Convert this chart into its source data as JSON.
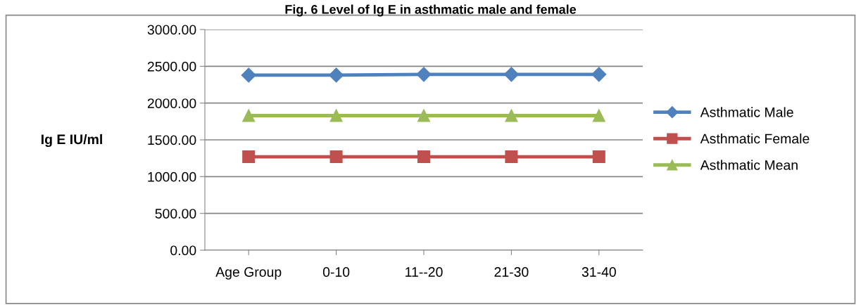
{
  "chart_data": {
    "type": "line",
    "title": "Fig. 6 Level of Ig E in asthmatic male and female",
    "ylabel": "Ig E IU/ml",
    "categories": [
      "Age Group",
      "0-10",
      "11--20",
      "21-30",
      "31-40"
    ],
    "series": [
      {
        "name": "Asthmatic Male",
        "color": "#4f81bd",
        "marker": "diamond",
        "values": [
          2380,
          2380,
          2390,
          2390,
          2390
        ]
      },
      {
        "name": "Asthmatic Female",
        "color": "#c0504d",
        "marker": "square",
        "values": [
          1270,
          1270,
          1270,
          1270,
          1270
        ]
      },
      {
        "name": "Asthmatic Mean",
        "color": "#9bbb59",
        "marker": "triangle",
        "values": [
          1830,
          1830,
          1830,
          1830,
          1830
        ]
      }
    ],
    "ylim": [
      0,
      3000
    ],
    "yticks": [
      {
        "value": 0,
        "label": "0.00"
      },
      {
        "value": 500,
        "label": "500.00"
      },
      {
        "value": 1000,
        "label": "1000.00"
      },
      {
        "value": 1500,
        "label": "1500.00"
      },
      {
        "value": 2000,
        "label": "2000.00"
      },
      {
        "value": 2500,
        "label": "2500.00"
      },
      {
        "value": 3000,
        "label": "3000.00"
      }
    ],
    "grid": "y",
    "legend": "right",
    "line_style": "solid"
  }
}
